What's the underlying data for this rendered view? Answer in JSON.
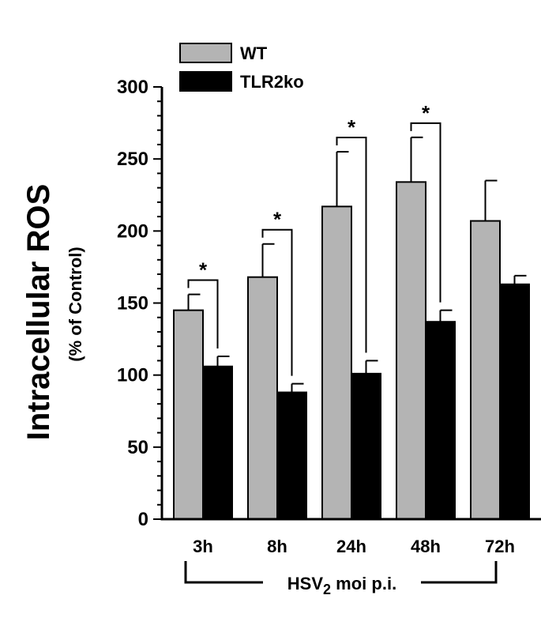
{
  "chart_data": {
    "type": "bar",
    "title": "",
    "ylabel": "Intracellular ROS",
    "ylabel_sub": "(% of Control)",
    "xlabel": {
      "prefix": "HSV",
      "subscript": "2",
      "suffix": " moi p.i."
    },
    "ylim": [
      0,
      300
    ],
    "yticks": [
      0,
      50,
      100,
      150,
      200,
      250,
      300
    ],
    "minor_tick_step": 10,
    "grid": false,
    "legend_position": "top-left",
    "categories": [
      "3h",
      "8h",
      "24h",
      "48h",
      "72h"
    ],
    "series": [
      {
        "name": "WT",
        "color": "#b4b4b4",
        "values": [
          145,
          168,
          217,
          234,
          207
        ],
        "errors": [
          11,
          23,
          38,
          31,
          28
        ]
      },
      {
        "name": "TLR2ko",
        "color": "#000000",
        "values": [
          106,
          88,
          101,
          137,
          163
        ],
        "errors": [
          7,
          6,
          9,
          8,
          6
        ]
      }
    ],
    "significance": [
      {
        "category": "3h",
        "label": "*"
      },
      {
        "category": "8h",
        "label": "*"
      },
      {
        "category": "24h",
        "label": "*"
      },
      {
        "category": "48h",
        "label": "*"
      }
    ]
  }
}
